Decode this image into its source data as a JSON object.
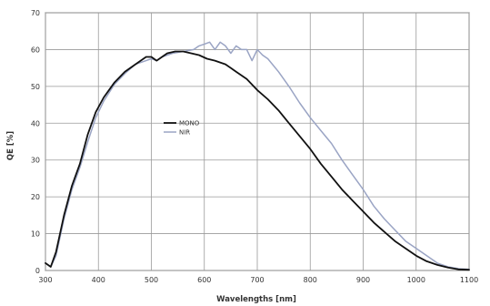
{
  "chart_data": {
    "type": "line",
    "xlabel": "Wavelengths [nm]",
    "ylabel": "QE [%]",
    "xlim": [
      300,
      1100
    ],
    "ylim": [
      0,
      70
    ],
    "xticks": [
      300,
      400,
      500,
      600,
      700,
      800,
      900,
      1000,
      1100
    ],
    "yticks": [
      0,
      10,
      20,
      30,
      40,
      50,
      60,
      70
    ],
    "grid": true,
    "legend": "center-left",
    "series": [
      {
        "name": "MONO",
        "color": "#111111",
        "x": [
          300,
          310,
          320,
          335,
          350,
          365,
          380,
          395,
          410,
          430,
          450,
          470,
          490,
          500,
          510,
          520,
          530,
          545,
          560,
          575,
          590,
          605,
          620,
          640,
          660,
          680,
          700,
          720,
          740,
          760,
          780,
          800,
          820,
          840,
          860,
          880,
          900,
          920,
          940,
          960,
          980,
          1000,
          1020,
          1040,
          1060,
          1080,
          1100
        ],
        "y": [
          2,
          1,
          5,
          15,
          23,
          29,
          37,
          43,
          47,
          51,
          54,
          56,
          58,
          58,
          57,
          58,
          59,
          59.5,
          59.5,
          59,
          58.5,
          57.5,
          57,
          56,
          54,
          52,
          49,
          46.5,
          43.5,
          40,
          36.5,
          33,
          29,
          25.5,
          22,
          19,
          16,
          13,
          10.5,
          8,
          6,
          4,
          2.5,
          1.5,
          0.8,
          0.3,
          0.2
        ]
      },
      {
        "name": "NIR",
        "color": "#9aa4c4",
        "x": [
          300,
          310,
          320,
          335,
          350,
          365,
          380,
          395,
          410,
          430,
          450,
          470,
          490,
          500,
          510,
          520,
          540,
          560,
          580,
          590,
          600,
          610,
          620,
          630,
          640,
          650,
          660,
          670,
          680,
          690,
          700,
          710,
          720,
          740,
          760,
          780,
          800,
          820,
          840,
          860,
          880,
          900,
          920,
          940,
          960,
          980,
          1000,
          1020,
          1040,
          1060,
          1080,
          1100
        ],
        "y": [
          2,
          1,
          4,
          14,
          22,
          28,
          35,
          41.5,
          46,
          50.5,
          53.5,
          56,
          57,
          57.5,
          57,
          58,
          59,
          59.5,
          60,
          61,
          61.5,
          62,
          60,
          62,
          61,
          59,
          61,
          60,
          60,
          57,
          60,
          58.5,
          57.5,
          54,
          50,
          45.5,
          41.5,
          38,
          34.5,
          30,
          26,
          22,
          17.5,
          14,
          11,
          8,
          6,
          4,
          2,
          1,
          0.5,
          0.3
        ]
      }
    ]
  }
}
